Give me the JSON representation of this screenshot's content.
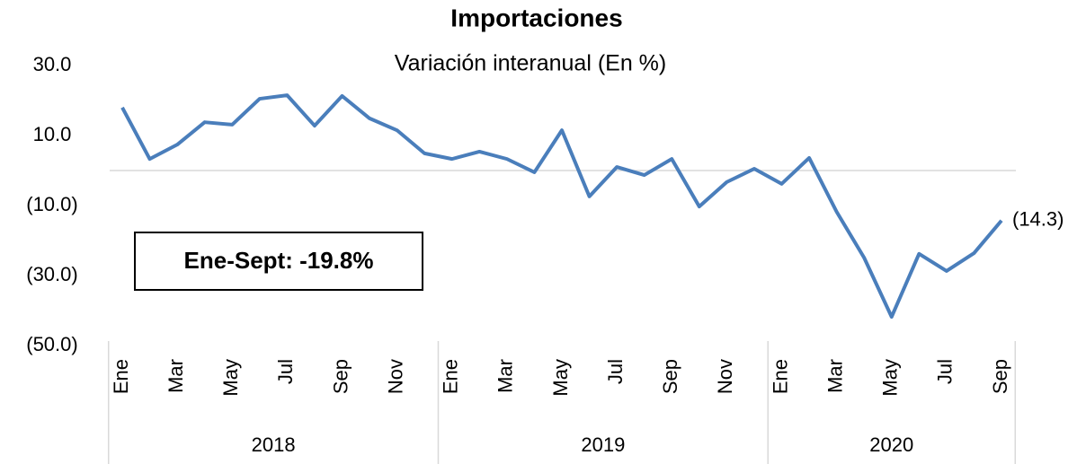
{
  "chart_data": {
    "type": "line",
    "title": "Importaciones",
    "subtitle": "Variación interanual (En %)",
    "annotation": "Ene-Sept:  -19.8%",
    "categories": [
      "Ene",
      null,
      "Mar",
      null,
      "May",
      null,
      "Jul",
      null,
      "Sep",
      null,
      "Nov",
      null,
      "Ene",
      null,
      "Mar",
      null,
      "May",
      null,
      "Jul",
      null,
      "Sep",
      null,
      "Nov",
      null,
      "Ene",
      null,
      "Mar",
      null,
      "May",
      null,
      "Jul",
      null,
      "Sep"
    ],
    "groups": [
      "2018",
      "2019",
      "2020"
    ],
    "series": [
      {
        "name": "Importaciones",
        "color": "#4a7ebb",
        "values": [
          18.0,
          3.3,
          7.4,
          13.8,
          13.1,
          20.5,
          21.5,
          12.8,
          21.3,
          14.9,
          11.5,
          4.9,
          3.3,
          5.4,
          3.3,
          -0.5,
          11.5,
          -7.4,
          1.0,
          -1.3,
          3.3,
          -10.3,
          -3.3,
          0.5,
          -3.8,
          3.6,
          -11.8,
          -24.9,
          -41.8,
          -23.8,
          -28.7,
          -23.6,
          -14.3
        ],
        "value_labels": [
          null,
          null,
          null,
          null,
          null,
          null,
          null,
          null,
          null,
          null,
          null,
          null,
          null,
          null,
          null,
          null,
          null,
          null,
          null,
          null,
          null,
          null,
          null,
          null,
          null,
          null,
          null,
          null,
          null,
          null,
          null,
          null,
          "(14.3)"
        ]
      }
    ],
    "ylim": [
      -50,
      30
    ],
    "yticks": [
      {
        "value": 30,
        "label": "30.0"
      },
      {
        "value": 10,
        "label": "10.0"
      },
      {
        "value": -10,
        "label": "(10.0)"
      },
      {
        "value": -30,
        "label": "(30.0)"
      },
      {
        "value": -50,
        "label": "(50.0)"
      }
    ]
  }
}
